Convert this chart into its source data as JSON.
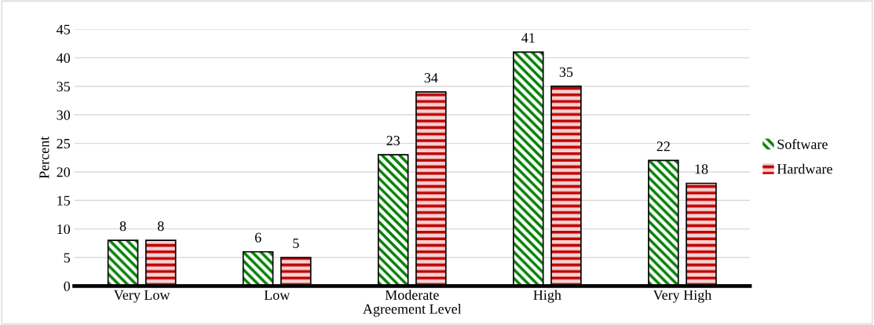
{
  "chart_data": {
    "type": "bar",
    "xlabel": "Agreement Level",
    "ylabel": "Percent",
    "categories": [
      "Very Low",
      "Low",
      "Moderate",
      "High",
      "Very High"
    ],
    "series": [
      {
        "name": "Software",
        "color": "#008000",
        "values": [
          8,
          6,
          23,
          41,
          22
        ]
      },
      {
        "name": "Hardware",
        "color": "#c00000",
        "values": [
          8,
          5,
          34,
          35,
          18
        ]
      }
    ],
    "ylim": [
      0,
      45
    ],
    "yticks": [
      0,
      5,
      10,
      15,
      20,
      25,
      30,
      35,
      40,
      45
    ],
    "grid": "y",
    "legend": "right",
    "data_labels": true
  }
}
